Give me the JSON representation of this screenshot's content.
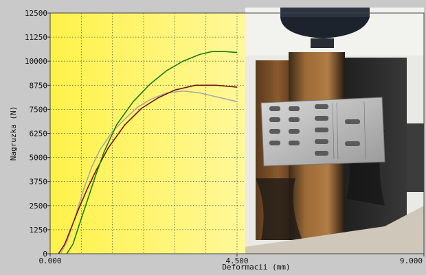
{
  "chart_data": {
    "type": "line",
    "title": "",
    "xlabel": "Deformacii (mm)",
    "ylabel": "Nagruzka (N)",
    "xlim": [
      0,
      9
    ],
    "ylim": [
      0,
      12500
    ],
    "x_ticks": [
      {
        "value": 0,
        "label": "0.000"
      },
      {
        "value": 4.5,
        "label": "4.500"
      },
      {
        "value": 9,
        "label": "9.000"
      }
    ],
    "y_ticks": [
      {
        "value": 0,
        "label": "0"
      },
      {
        "value": 1250,
        "label": "1250"
      },
      {
        "value": 2500,
        "label": "2500"
      },
      {
        "value": 3750,
        "label": "3750"
      },
      {
        "value": 5000,
        "label": "5000"
      },
      {
        "value": 6250,
        "label": "6250"
      },
      {
        "value": 7500,
        "label": "7500"
      },
      {
        "value": 8750,
        "label": "8750"
      },
      {
        "value": 10000,
        "label": "10000"
      },
      {
        "value": 11250,
        "label": "11250"
      },
      {
        "value": 12500,
        "label": "12500"
      }
    ],
    "grid": true,
    "legend": "none",
    "plot_background": {
      "left": "#fff24a",
      "right": "#fffde0"
    },
    "photo_inset": "photograph of a burnt timber joint with a perforated metal nail plate under a press, covering the right half of the plot",
    "series": [
      {
        "color": "#a8a8a8",
        "x": [
          0.25,
          0.4,
          0.6,
          0.8,
          1.0,
          1.2,
          1.5,
          1.8,
          2.1,
          2.4,
          2.8,
          3.2,
          3.6,
          4.0,
          4.5
        ],
        "y": [
          0,
          600,
          1900,
          3300,
          4500,
          5400,
          6350,
          7000,
          7600,
          8000,
          8350,
          8450,
          8350,
          8150,
          7900
        ]
      },
      {
        "color": "#7a1010",
        "x": [
          0.2,
          0.35,
          0.5,
          0.7,
          0.9,
          1.1,
          1.4,
          1.8,
          2.2,
          2.6,
          3.0,
          3.5,
          4.0,
          4.5
        ],
        "y": [
          0,
          500,
          1300,
          2400,
          3400,
          4300,
          5500,
          6700,
          7550,
          8100,
          8500,
          8750,
          8750,
          8650
        ]
      },
      {
        "color": "#1a7a1a",
        "x": [
          0.4,
          0.55,
          0.7,
          0.9,
          1.1,
          1.3,
          1.6,
          2.0,
          2.4,
          2.8,
          3.2,
          3.6,
          3.9,
          4.2,
          4.5
        ],
        "y": [
          0,
          500,
          1500,
          2800,
          4100,
          5300,
          6700,
          7900,
          8800,
          9500,
          10000,
          10350,
          10500,
          10500,
          10450
        ]
      }
    ]
  }
}
